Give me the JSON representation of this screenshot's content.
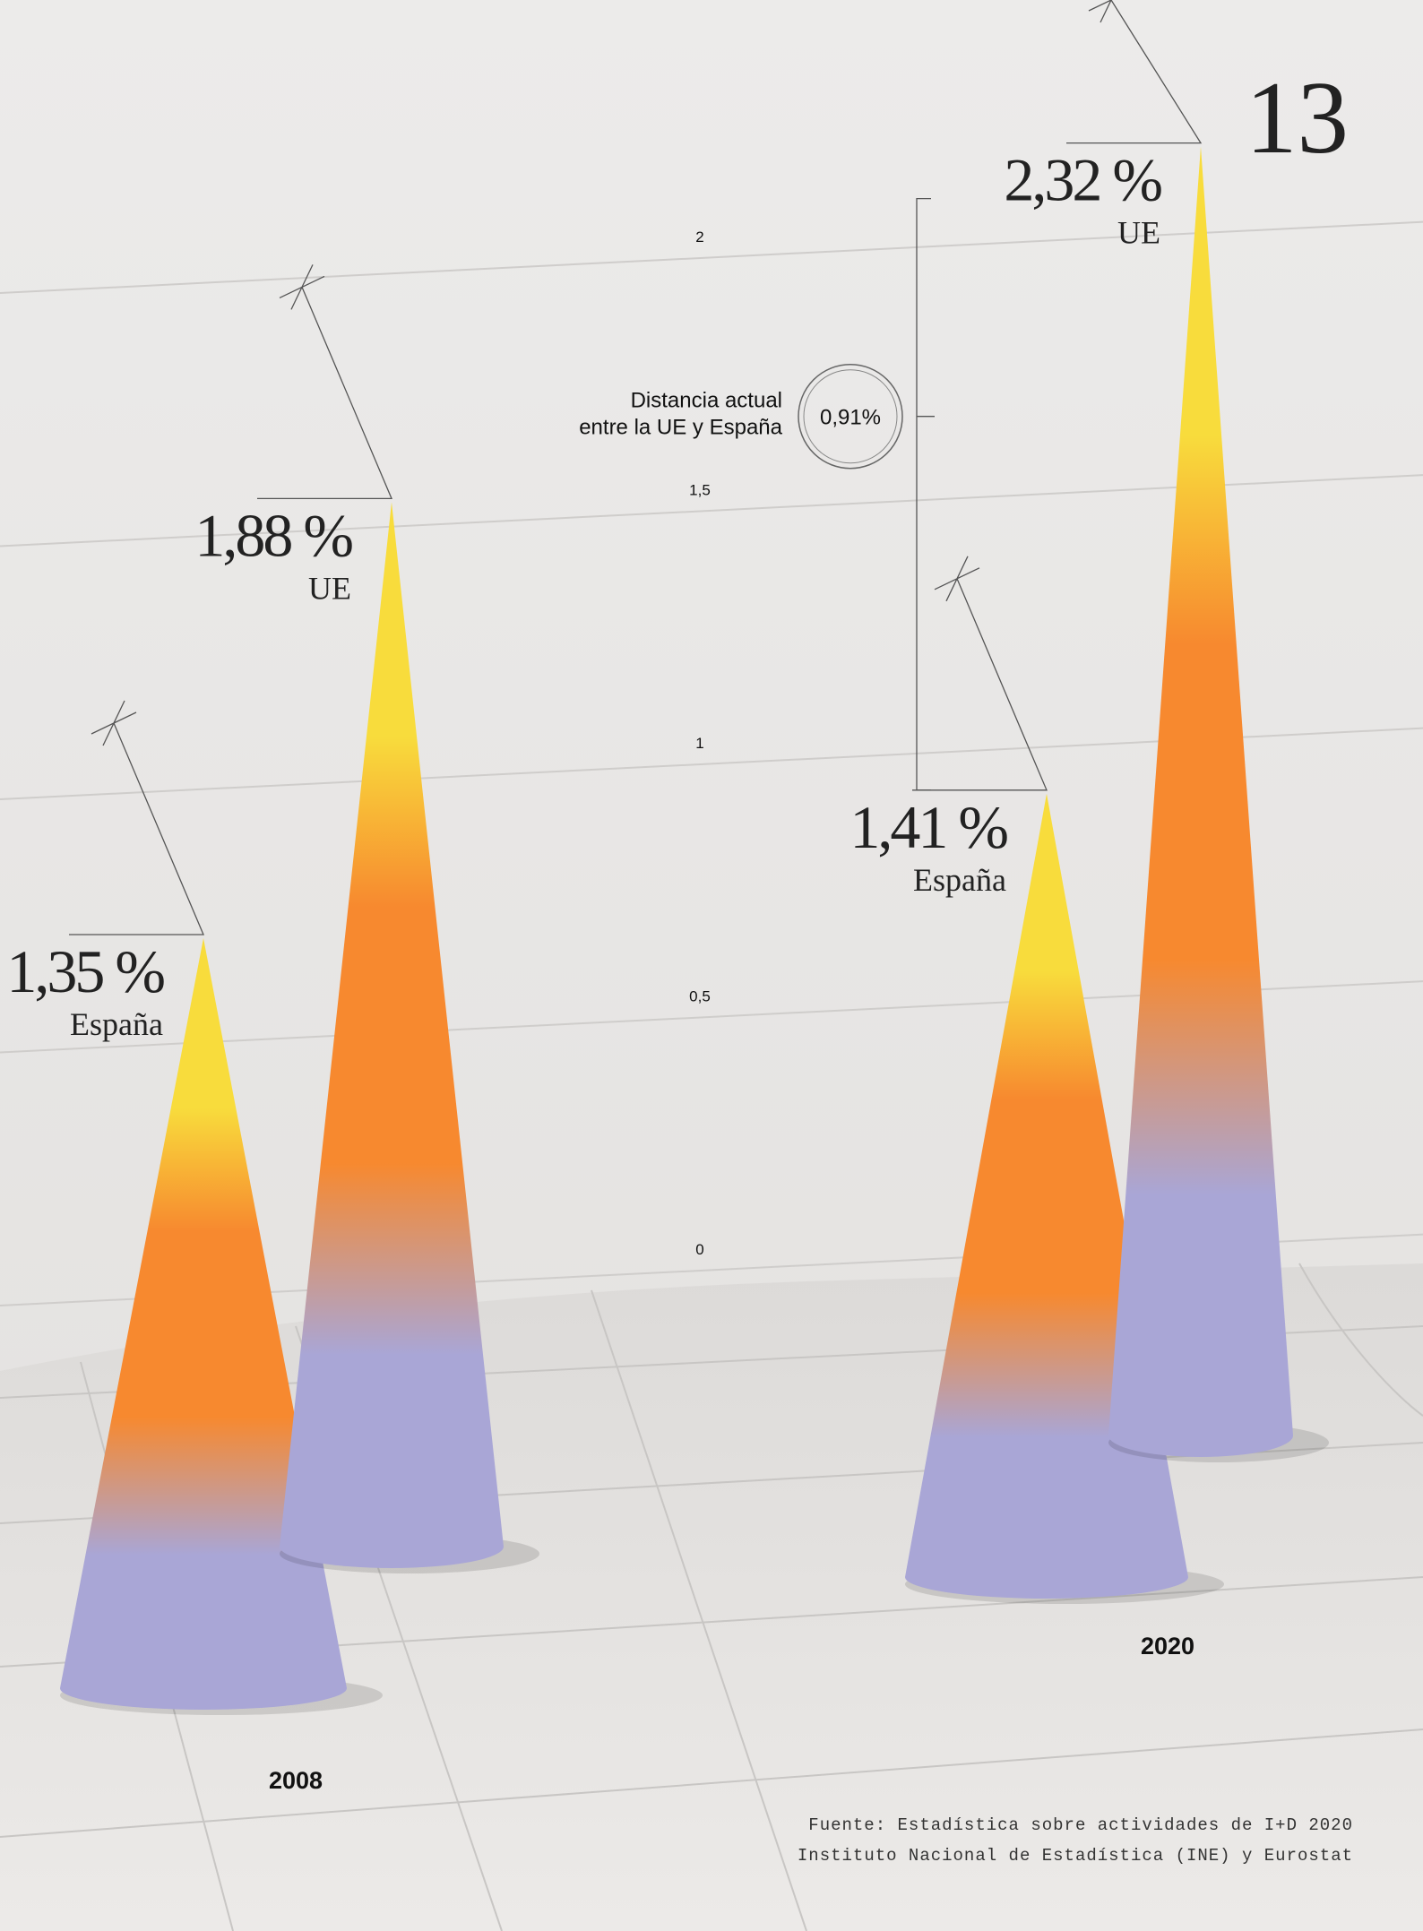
{
  "chart_data": {
    "type": "cone",
    "page_number": "13",
    "categories": [
      "2008",
      "2020"
    ],
    "series": [
      {
        "name": "España",
        "values": [
          1.35,
          1.41
        ],
        "value_labels": [
          "1,35 %",
          "1,41 %"
        ]
      },
      {
        "name": "UE",
        "values": [
          1.88,
          2.32
        ],
        "value_labels": [
          "1,88 %",
          "2,32 %"
        ]
      }
    ],
    "colors": [
      "#f8dc3c",
      "#f7892f",
      "#a9a6d6"
    ],
    "ylim": [
      0,
      2
    ],
    "yticks": [
      0,
      {
        "value": 0.5,
        "label": "0,5"
      },
      1,
      {
        "value": 1.5,
        "label": "1,5"
      },
      2
    ],
    "grid": true,
    "annotation": {
      "text": [
        "Distancia actual",
        "entre la UE y España"
      ],
      "value": 0.91,
      "label": "0,91%"
    },
    "source": [
      "Fuente: Estadística sobre actividades de I+D 2020",
      "Instituto Nacional de Estadística (INE) y Eurostat"
    ]
  }
}
